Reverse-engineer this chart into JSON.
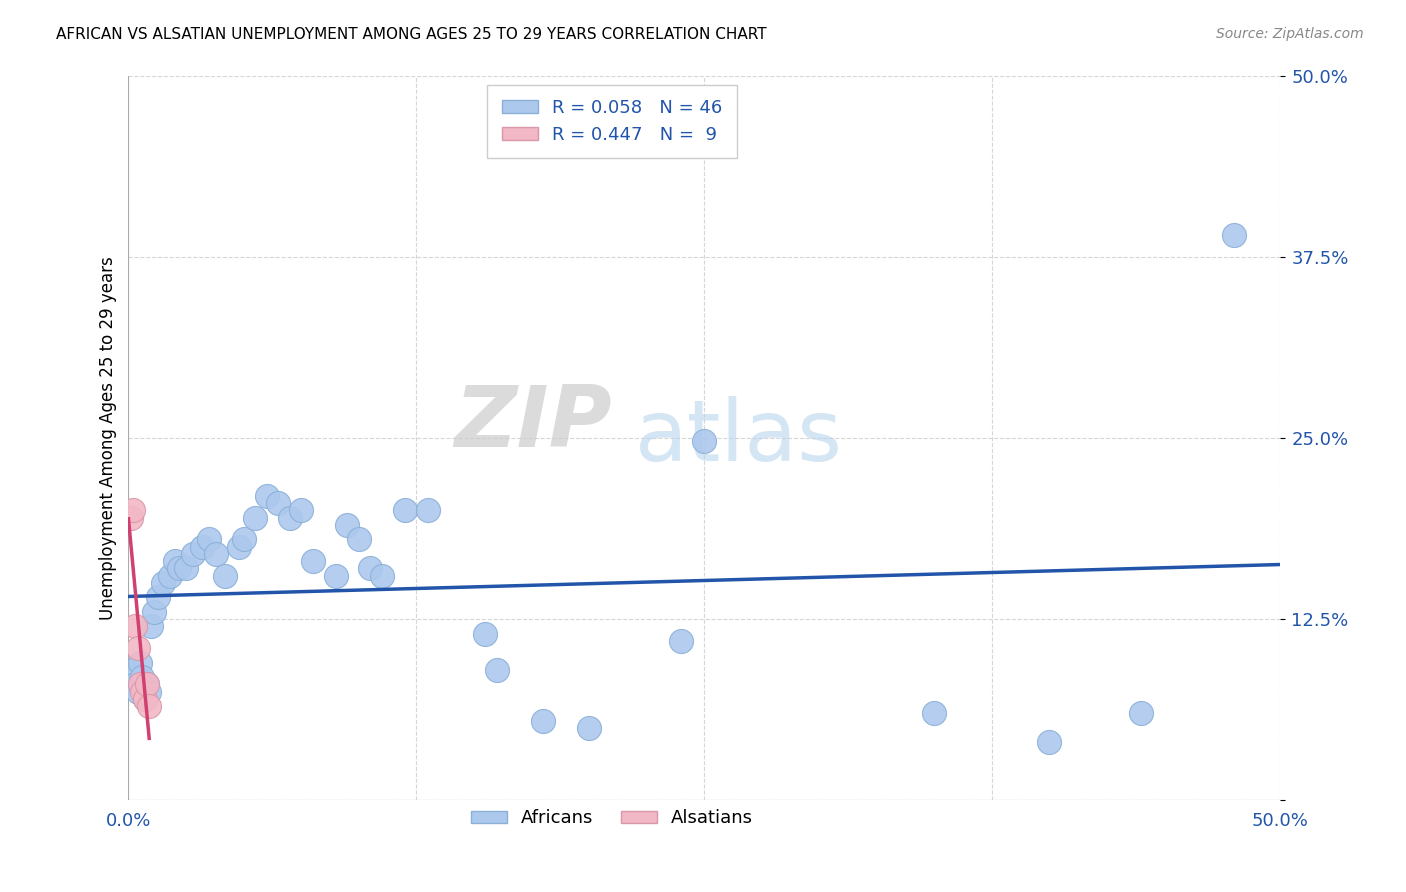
{
  "title": "AFRICAN VS ALSATIAN UNEMPLOYMENT AMONG AGES 25 TO 29 YEARS CORRELATION CHART",
  "source": "Source: ZipAtlas.com",
  "ylabel": "Unemployment Among Ages 25 to 29 years",
  "xlim": [
    0.0,
    0.5
  ],
  "ylim": [
    0.0,
    0.5
  ],
  "african_color": "#adc8ed",
  "african_edge": "#8ab0d8",
  "alsatian_color": "#f2b8c6",
  "alsatian_edge": "#d898a8",
  "african_R": 0.058,
  "african_N": 46,
  "alsatian_R": 0.447,
  "alsatian_N": 9,
  "trend_african_color": "#2255aa",
  "trend_alsatian_color": "#d04070",
  "background_color": "#ffffff",
  "watermark_zip": "ZIP",
  "watermark_atlas": "atlas",
  "african_x": [
    0.002,
    0.003,
    0.004,
    0.005,
    0.006,
    0.007,
    0.008,
    0.009,
    0.01,
    0.011,
    0.013,
    0.015,
    0.018,
    0.02,
    0.022,
    0.025,
    0.028,
    0.032,
    0.035,
    0.038,
    0.042,
    0.048,
    0.05,
    0.055,
    0.06,
    0.065,
    0.07,
    0.075,
    0.08,
    0.09,
    0.095,
    0.1,
    0.105,
    0.11,
    0.12,
    0.13,
    0.155,
    0.16,
    0.18,
    0.2,
    0.24,
    0.25,
    0.35,
    0.4,
    0.44,
    0.48
  ],
  "african_y": [
    0.09,
    0.08,
    0.075,
    0.095,
    0.085,
    0.07,
    0.08,
    0.075,
    0.12,
    0.13,
    0.14,
    0.15,
    0.155,
    0.165,
    0.16,
    0.16,
    0.17,
    0.175,
    0.18,
    0.17,
    0.155,
    0.175,
    0.18,
    0.195,
    0.21,
    0.205,
    0.195,
    0.2,
    0.165,
    0.155,
    0.19,
    0.18,
    0.16,
    0.155,
    0.2,
    0.2,
    0.115,
    0.09,
    0.055,
    0.05,
    0.11,
    0.248,
    0.06,
    0.04,
    0.06,
    0.39
  ],
  "alsatian_x": [
    0.001,
    0.002,
    0.003,
    0.004,
    0.005,
    0.006,
    0.007,
    0.008,
    0.009
  ],
  "alsatian_y": [
    0.195,
    0.2,
    0.12,
    0.105,
    0.08,
    0.075,
    0.07,
    0.08,
    0.065
  ]
}
